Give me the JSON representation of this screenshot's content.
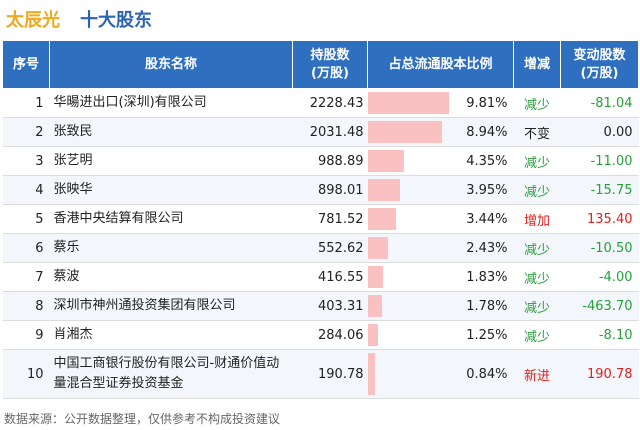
{
  "title": {
    "company": "太辰光",
    "section": "十大股东"
  },
  "colors": {
    "header_bg": "#2f6fbf",
    "decrease": "#27a13a",
    "increase": "#e0201b",
    "bar": "#f9c1c1",
    "company_title": "#f2a81d",
    "section_title": "#2b63b5"
  },
  "headers": {
    "index": "序号",
    "name": "股东名称",
    "shares": "持股数(万股)",
    "ratio": "占总流通股本比例",
    "change_type": "增减",
    "change": "变动股数(万股)"
  },
  "rows": [
    {
      "index": "1",
      "name": "华暘进出口(深圳)有限公司",
      "shares": "2228.43",
      "ratio_value": 9.81,
      "ratio": "9.81%",
      "change_type": "减少",
      "change_class": "down",
      "change": "-81.04"
    },
    {
      "index": "2",
      "name": "张致民",
      "shares": "2031.48",
      "ratio_value": 8.94,
      "ratio": "8.94%",
      "change_type": "不变",
      "change_class": "flat",
      "change": "0.00"
    },
    {
      "index": "3",
      "name": "张艺明",
      "shares": "988.89",
      "ratio_value": 4.35,
      "ratio": "4.35%",
      "change_type": "减少",
      "change_class": "down",
      "change": "-11.00"
    },
    {
      "index": "4",
      "name": "张映华",
      "shares": "898.01",
      "ratio_value": 3.95,
      "ratio": "3.95%",
      "change_type": "减少",
      "change_class": "down",
      "change": "-15.75"
    },
    {
      "index": "5",
      "name": "香港中央结算有限公司",
      "shares": "781.52",
      "ratio_value": 3.44,
      "ratio": "3.44%",
      "change_type": "增加",
      "change_class": "up",
      "change": "135.40"
    },
    {
      "index": "6",
      "name": "蔡乐",
      "shares": "552.62",
      "ratio_value": 2.43,
      "ratio": "2.43%",
      "change_type": "减少",
      "change_class": "down",
      "change": "-10.50"
    },
    {
      "index": "7",
      "name": "蔡波",
      "shares": "416.55",
      "ratio_value": 1.83,
      "ratio": "1.83%",
      "change_type": "减少",
      "change_class": "down",
      "change": "-4.00"
    },
    {
      "index": "8",
      "name": "深圳市神州通投资集团有限公司",
      "shares": "403.31",
      "ratio_value": 1.78,
      "ratio": "1.78%",
      "change_type": "减少",
      "change_class": "down",
      "change": "-463.70"
    },
    {
      "index": "9",
      "name": "肖湘杰",
      "shares": "284.06",
      "ratio_value": 1.25,
      "ratio": "1.25%",
      "change_type": "减少",
      "change_class": "down",
      "change": "-8.10"
    },
    {
      "index": "10",
      "name": "中国工商银行股份有限公司-财通价值动量混合型证券投资基金",
      "shares": "190.78",
      "ratio_value": 0.84,
      "ratio": "0.84%",
      "change_type": "新进",
      "change_class": "up",
      "change": "190.78"
    }
  ],
  "footer": "数据来源：公开数据整理，仅供参考不构成投资建议"
}
